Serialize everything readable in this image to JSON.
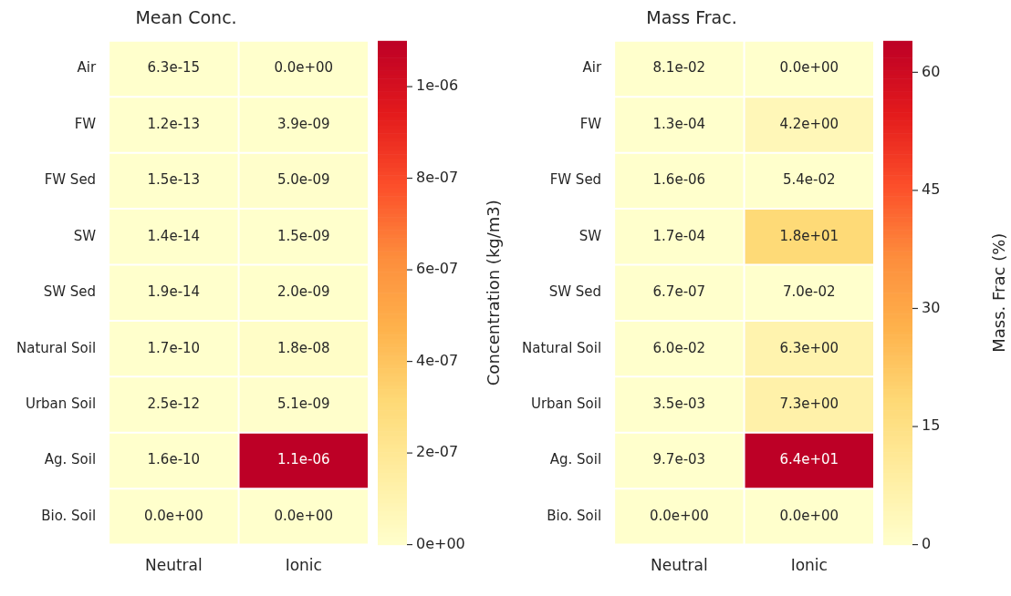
{
  "chart_data": [
    {
      "type": "heatmap",
      "title": "Mean Conc.",
      "clabel": "Concentration (kg/m3)",
      "categories": [
        "Neutral",
        "Ionic"
      ],
      "y_categories": [
        "Air",
        "FW",
        "FW Sed",
        "SW",
        "SW Sed",
        "Natural Soil",
        "Urban Soil",
        "Ag. Soil",
        "Bio. Soil"
      ],
      "cells": [
        [
          6.3e-15,
          0.0
        ],
        [
          1.2e-13,
          3.9e-09
        ],
        [
          1.5e-13,
          5e-09
        ],
        [
          1.4e-14,
          1.5e-09
        ],
        [
          1.9e-14,
          2e-09
        ],
        [
          1.7e-10,
          1.8e-08
        ],
        [
          2.5e-12,
          5.1e-09
        ],
        [
          1.6e-10,
          1.1e-06
        ],
        [
          0.0,
          0.0
        ]
      ],
      "cell_labels": [
        [
          "6.3e-15",
          "0.0e+00"
        ],
        [
          "1.2e-13",
          "3.9e-09"
        ],
        [
          "1.5e-13",
          "5.0e-09"
        ],
        [
          "1.4e-14",
          "1.5e-09"
        ],
        [
          "1.9e-14",
          "2.0e-09"
        ],
        [
          "1.7e-10",
          "1.8e-08"
        ],
        [
          "2.5e-12",
          "5.1e-09"
        ],
        [
          "1.6e-10",
          "1.1e-06"
        ],
        [
          "0.0e+00",
          "0.0e+00"
        ]
      ],
      "clim": [
        0,
        1.1e-06
      ],
      "cticks": [
        {
          "value": 0,
          "label": "0e+00"
        },
        {
          "value": 2e-07,
          "label": "2e-07"
        },
        {
          "value": 4e-07,
          "label": "4e-07"
        },
        {
          "value": 6e-07,
          "label": "6e-07"
        },
        {
          "value": 8e-07,
          "label": "8e-07"
        },
        {
          "value": 1e-06,
          "label": "1e-06"
        }
      ]
    },
    {
      "type": "heatmap",
      "title": "Mass Frac.",
      "clabel": "Mass. Frac (%)",
      "categories": [
        "Neutral",
        "Ionic"
      ],
      "y_categories": [
        "Air",
        "FW",
        "FW Sed",
        "SW",
        "SW Sed",
        "Natural Soil",
        "Urban Soil",
        "Ag. Soil",
        "Bio. Soil"
      ],
      "cells": [
        [
          0.081,
          0.0
        ],
        [
          0.00013,
          4.2
        ],
        [
          1.6e-06,
          0.054
        ],
        [
          0.00017,
          18
        ],
        [
          6.7e-07,
          0.07
        ],
        [
          0.06,
          6.3
        ],
        [
          0.0035,
          7.3
        ],
        [
          0.0097,
          64
        ],
        [
          0.0,
          0.0
        ]
      ],
      "cell_labels": [
        [
          "8.1e-02",
          "0.0e+00"
        ],
        [
          "1.3e-04",
          "4.2e+00"
        ],
        [
          "1.6e-06",
          "5.4e-02"
        ],
        [
          "1.7e-04",
          "1.8e+01"
        ],
        [
          "6.7e-07",
          "7.0e-02"
        ],
        [
          "6.0e-02",
          "6.3e+00"
        ],
        [
          "3.5e-03",
          "7.3e+00"
        ],
        [
          "9.7e-03",
          "6.4e+01"
        ],
        [
          "0.0e+00",
          "0.0e+00"
        ]
      ],
      "clim": [
        0,
        64
      ],
      "cticks": [
        0,
        15,
        30,
        45,
        60
      ]
    }
  ]
}
